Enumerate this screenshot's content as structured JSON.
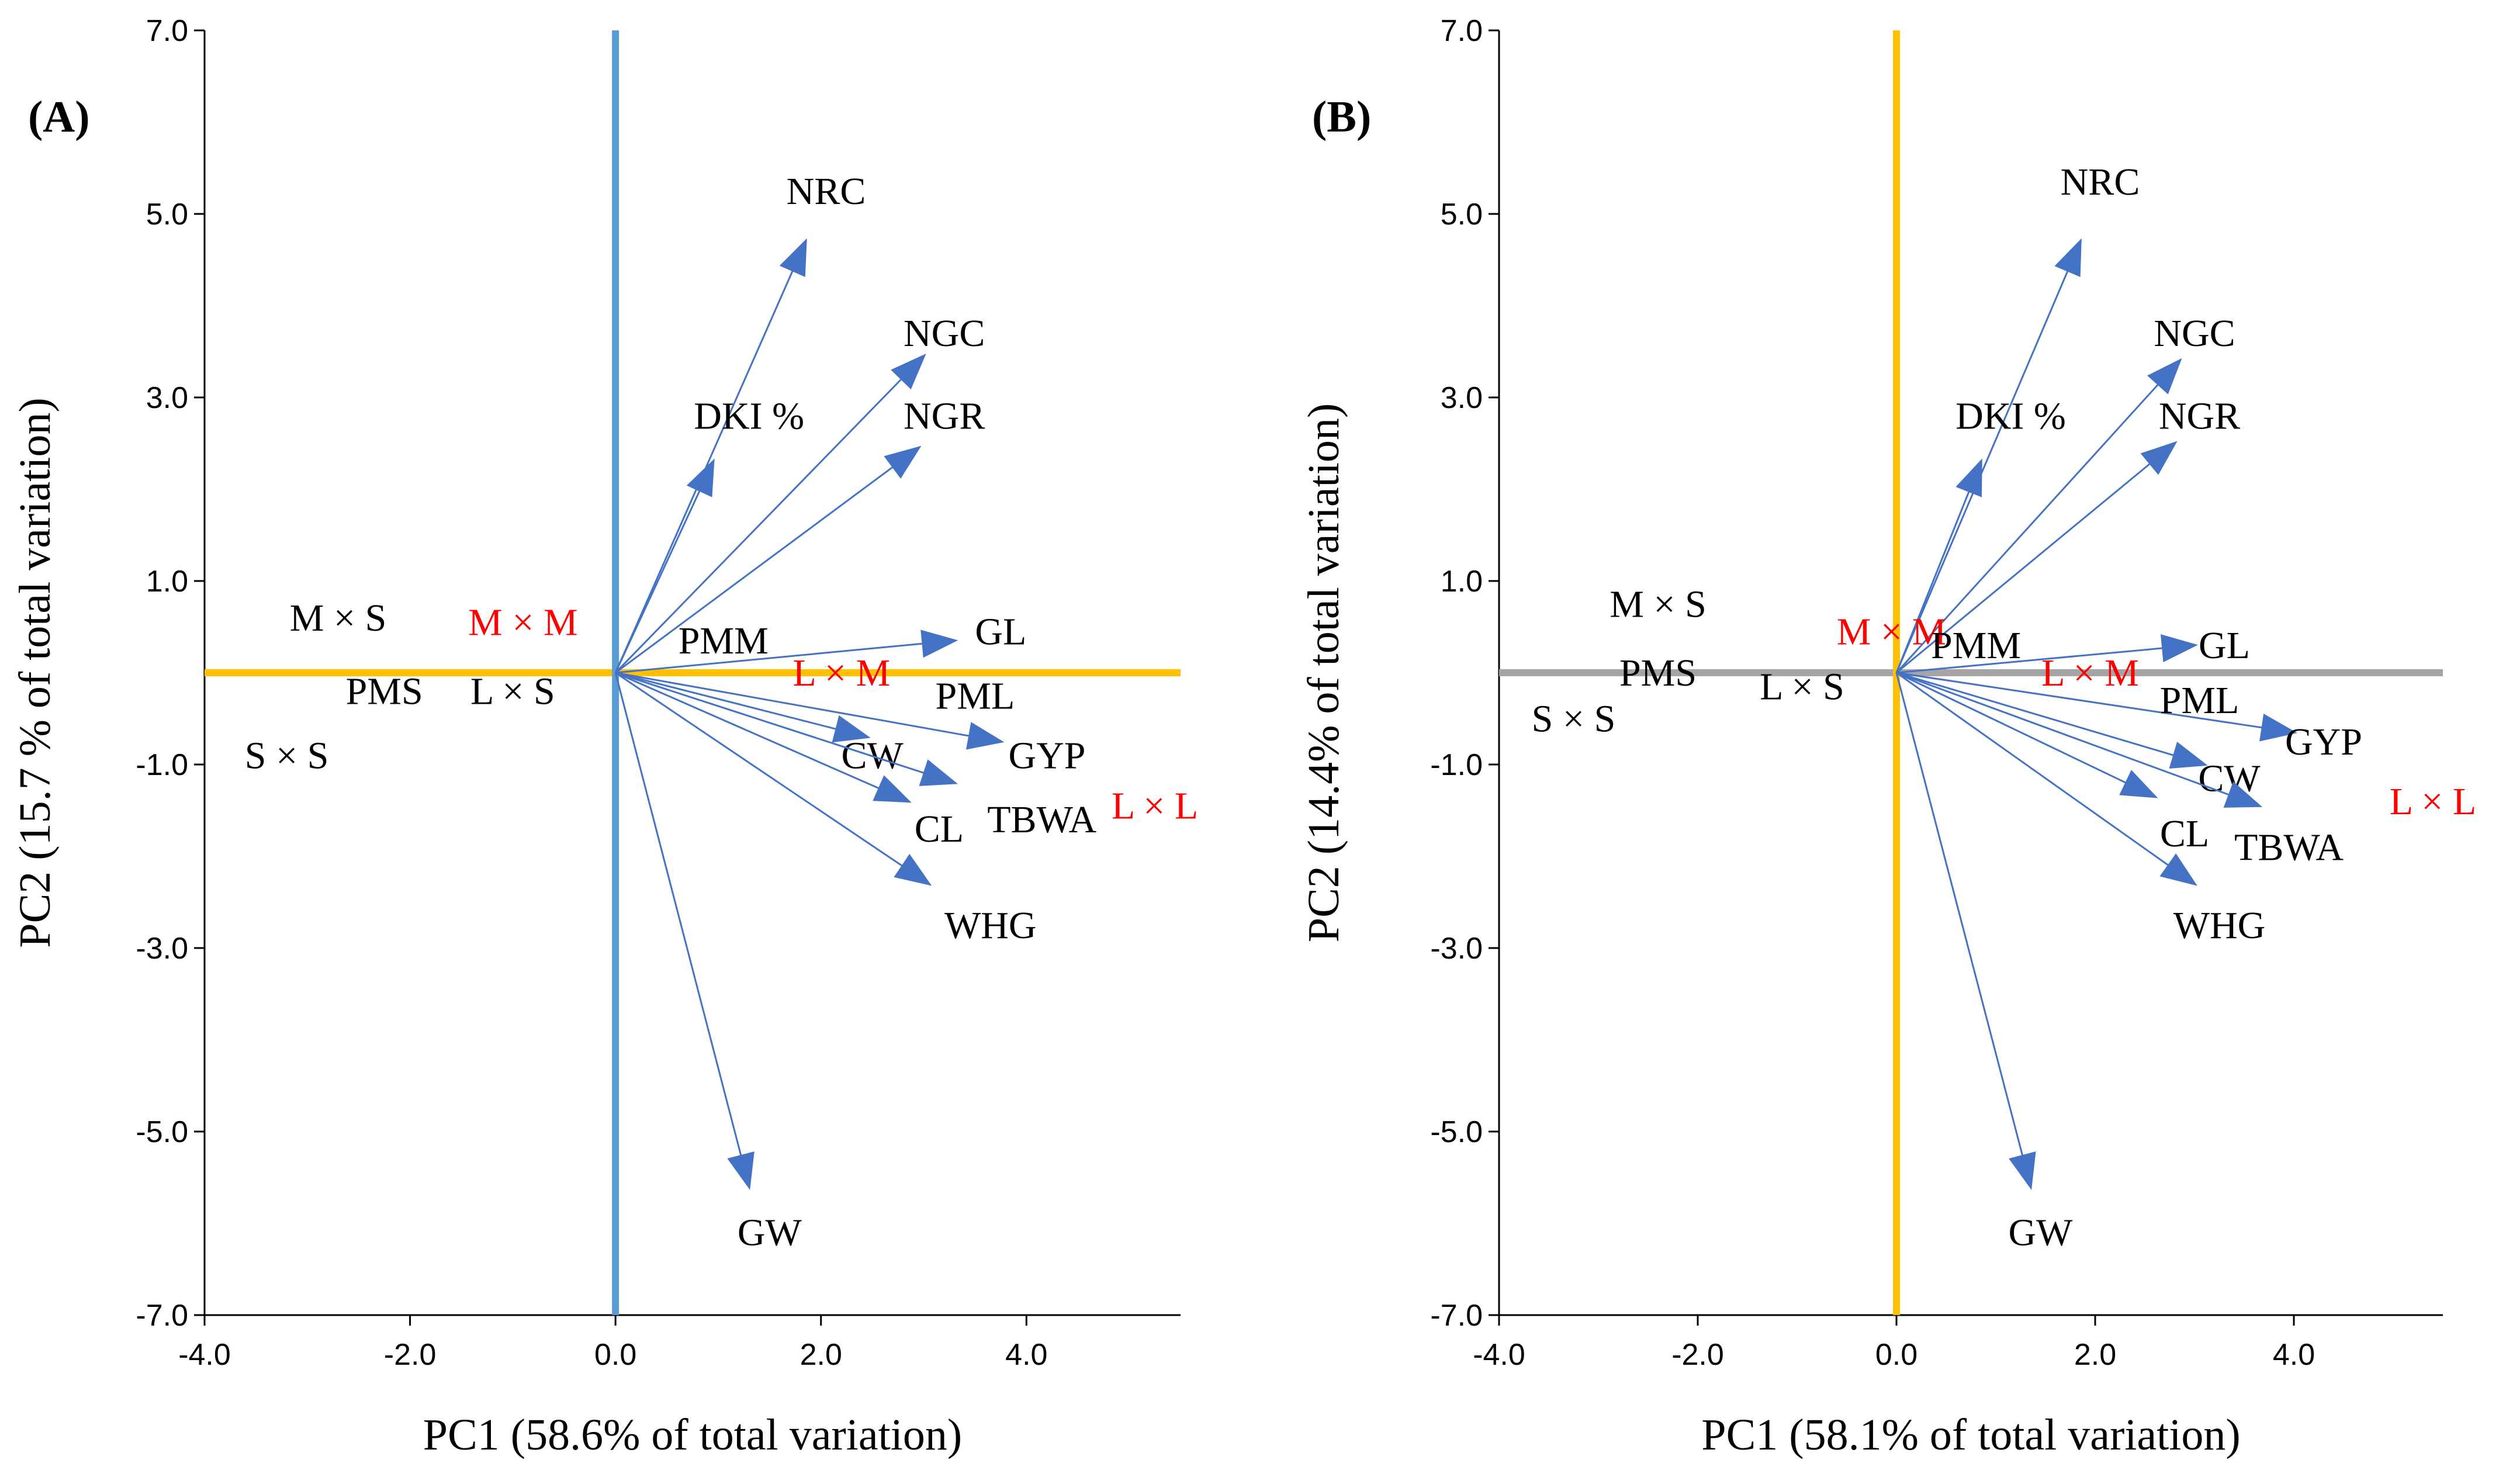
{
  "chart_data": [
    {
      "type": "scatter",
      "panel_label": "(A)",
      "xlabel": "PC1 (58.6% of total variation)",
      "ylabel": "PC2 (15.7 % of total variation)",
      "xlim": [
        -4.0,
        5.5
      ],
      "ylim": [
        -7.0,
        7.0
      ],
      "xticks": [
        -4.0,
        -2.0,
        0.0,
        2.0,
        4.0
      ],
      "yticks": [
        -7.0,
        -5.0,
        -3.0,
        -1.0,
        1.0,
        3.0,
        5.0,
        7.0
      ],
      "tick_labels_x": [
        "-4.0",
        "-2.0",
        "0.0",
        "2.0",
        "4.0"
      ],
      "tick_labels_y": [
        "-7.0",
        "-5.0",
        "-3.0",
        "-1.0",
        "1.0",
        "3.0",
        "5.0",
        "7.0"
      ],
      "zero_line_colors": {
        "horizontal": "#ffc000",
        "vertical": "#5b9bd5"
      },
      "vector_color": "#4472c4",
      "vectors": [
        {
          "name": "NRC",
          "x": 1.85,
          "y": 4.7,
          "label_x": 2.05,
          "label_y": 5.25
        },
        {
          "name": "NGC",
          "x": 3.0,
          "y": 3.45,
          "label_x": 3.2,
          "label_y": 3.7
        },
        {
          "name": "DKI %",
          "x": 0.95,
          "y": 2.3,
          "label_x": 1.3,
          "label_y": 2.8
        },
        {
          "name": "NGR",
          "x": 2.95,
          "y": 2.45,
          "label_x": 3.2,
          "label_y": 2.8
        },
        {
          "name": "GL",
          "x": 3.3,
          "y": 0.35,
          "label_x": 3.75,
          "label_y": 0.45
        },
        {
          "name": "GYP",
          "x": 3.75,
          "y": -0.75,
          "label_x": 4.2,
          "label_y": -0.9
        },
        {
          "name": "CW",
          "x": 2.45,
          "y": -0.7,
          "label_x": 2.5,
          "label_y": -0.9
        },
        {
          "name": "TBWA",
          "x": 3.3,
          "y": -1.2,
          "label_x": 4.15,
          "label_y": -1.6
        },
        {
          "name": "CL",
          "x": 2.85,
          "y": -1.4,
          "label_x": 3.15,
          "label_y": -1.7
        },
        {
          "name": "WHG",
          "x": 3.05,
          "y": -2.3,
          "label_x": 3.65,
          "label_y": -2.75
        },
        {
          "name": "GW",
          "x": 1.3,
          "y": -5.6,
          "label_x": 1.5,
          "label_y": -6.1
        }
      ],
      "points": [
        {
          "name": "M × S",
          "x": -2.7,
          "y": 0.6,
          "color": "#000000"
        },
        {
          "name": "M × M",
          "x": -0.9,
          "y": 0.55,
          "color": "#ff0000"
        },
        {
          "name": "PMM",
          "x": 1.05,
          "y": 0.35,
          "color": "#000000"
        },
        {
          "name": "PMS",
          "x": -2.25,
          "y": -0.2,
          "color": "#000000"
        },
        {
          "name": "L × S",
          "x": -1.0,
          "y": -0.2,
          "color": "#000000"
        },
        {
          "name": "L × M",
          "x": 2.2,
          "y": 0.0,
          "color": "#ff0000"
        },
        {
          "name": "PML",
          "x": 3.5,
          "y": -0.25,
          "color": "#000000"
        },
        {
          "name": "S × S",
          "x": -3.2,
          "y": -0.9,
          "color": "#000000"
        },
        {
          "name": "L × L",
          "x": 5.25,
          "y": -1.45,
          "color": "#ff0000"
        }
      ]
    },
    {
      "type": "scatter",
      "panel_label": "(B)",
      "xlabel": "PC1 (58.1% of total variation)",
      "ylabel": "PC2 (14.4% of total variation)",
      "xlim": [
        -4.0,
        5.5
      ],
      "ylim": [
        -7.0,
        7.0
      ],
      "xticks": [
        -4.0,
        -2.0,
        0.0,
        2.0,
        4.0
      ],
      "yticks": [
        -7.0,
        -5.0,
        -3.0,
        -1.0,
        1.0,
        3.0,
        5.0,
        7.0
      ],
      "tick_labels_x": [
        "-4.0",
        "-2.0",
        "0.0",
        "2.0",
        "4.0"
      ],
      "tick_labels_y": [
        "-7.0",
        "-5.0",
        "-3.0",
        "-1.0",
        "1.0",
        "3.0",
        "5.0",
        "7.0"
      ],
      "zero_line_colors": {
        "horizontal": "#a5a5a5",
        "vertical": "#ffc000"
      },
      "vector_color": "#4472c4",
      "vectors": [
        {
          "name": "NRC",
          "x": 1.85,
          "y": 4.7,
          "label_x": 2.05,
          "label_y": 5.35
        },
        {
          "name": "NGC",
          "x": 2.85,
          "y": 3.4,
          "label_x": 3.0,
          "label_y": 3.7
        },
        {
          "name": "DKI %",
          "x": 0.85,
          "y": 2.3,
          "label_x": 1.15,
          "label_y": 2.8
        },
        {
          "name": "NGR",
          "x": 2.8,
          "y": 2.5,
          "label_x": 3.05,
          "label_y": 2.8
        },
        {
          "name": "GL",
          "x": 3.0,
          "y": 0.3,
          "label_x": 3.3,
          "label_y": 0.3
        },
        {
          "name": "GYP",
          "x": 4.0,
          "y": -0.65,
          "label_x": 4.3,
          "label_y": -0.75
        },
        {
          "name": "CW",
          "x": 3.1,
          "y": -1.0,
          "label_x": 3.35,
          "label_y": -1.15
        },
        {
          "name": "TBWA",
          "x": 3.65,
          "y": -1.45,
          "label_x": 3.95,
          "label_y": -1.9
        },
        {
          "name": "CL",
          "x": 2.6,
          "y": -1.35,
          "label_x": 2.9,
          "label_y": -1.75
        },
        {
          "name": "WHG",
          "x": 3.0,
          "y": -2.3,
          "label_x": 3.25,
          "label_y": -2.75
        },
        {
          "name": "GW",
          "x": 1.35,
          "y": -5.6,
          "label_x": 1.45,
          "label_y": -6.1
        }
      ],
      "points": [
        {
          "name": "M × S",
          "x": -2.4,
          "y": 0.75,
          "color": "#000000"
        },
        {
          "name": "M × M",
          "x": -0.05,
          "y": 0.45,
          "color": "#ff0000"
        },
        {
          "name": "PMM",
          "x": 0.8,
          "y": 0.3,
          "color": "#000000"
        },
        {
          "name": "PMS",
          "x": -2.4,
          "y": 0.0,
          "color": "#000000"
        },
        {
          "name": "L × S",
          "x": -0.95,
          "y": -0.15,
          "color": "#000000"
        },
        {
          "name": "L × M",
          "x": 1.95,
          "y": 0.0,
          "color": "#ff0000"
        },
        {
          "name": "PML",
          "x": 3.05,
          "y": -0.3,
          "color": "#000000"
        },
        {
          "name": "S × S",
          "x": -3.25,
          "y": -0.5,
          "color": "#000000"
        },
        {
          "name": "L × L",
          "x": 5.4,
          "y": -1.4,
          "color": "#ff0000"
        }
      ]
    }
  ]
}
